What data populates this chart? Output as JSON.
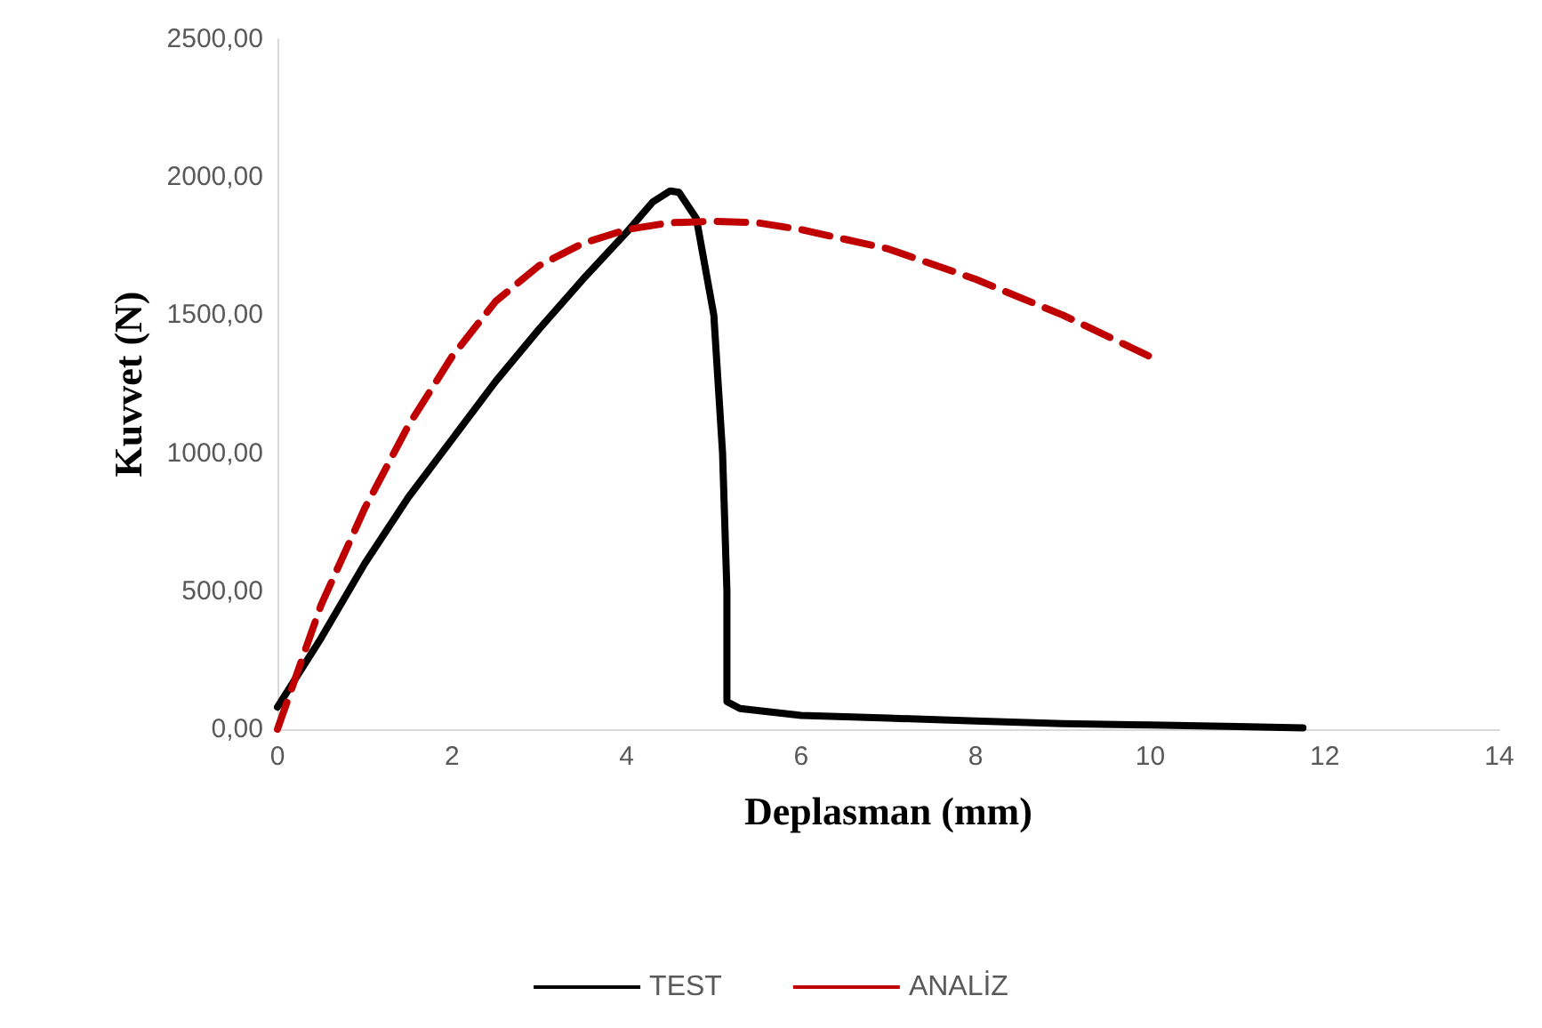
{
  "chart_data": {
    "type": "line",
    "xlabel": "Deplasman (mm)",
    "ylabel": "Kuvvet (N)",
    "xlim": [
      0,
      14
    ],
    "xticks": [
      0,
      2,
      4,
      6,
      8,
      10,
      12,
      14
    ],
    "ylim": [
      0,
      2500
    ],
    "yticks": [
      {
        "value": 0,
        "label": "0,00"
      },
      {
        "value": 500,
        "label": "500,00"
      },
      {
        "value": 1000,
        "label": "1000,00"
      },
      {
        "value": 1500,
        "label": "1500,00"
      },
      {
        "value": 2000,
        "label": "2000,00"
      },
      {
        "value": 2500,
        "label": "2500,00"
      }
    ],
    "grid": false,
    "legend": "bottom",
    "marker": "none",
    "series": [
      {
        "name": "TEST",
        "color": "#000000",
        "line_style": "solid",
        "x": [
          0,
          0.5,
          1,
          1.5,
          2,
          2.5,
          3,
          3.5,
          4,
          4.3,
          4.5,
          4.6,
          4.8,
          5.0,
          5.1,
          5.15,
          5.15,
          5.3,
          6,
          7,
          8,
          9,
          10,
          11,
          11.75
        ],
        "values": [
          80,
          330,
          600,
          840,
          1050,
          1260,
          1450,
          1630,
          1800,
          1910,
          1950,
          1945,
          1850,
          1500,
          1000,
          500,
          100,
          75,
          50,
          40,
          30,
          20,
          15,
          10,
          5
        ]
      },
      {
        "name": "ANALİZ",
        "color": "#c00000",
        "line_style": "dashed",
        "x": [
          0,
          0.5,
          1,
          1.5,
          2,
          2.5,
          3,
          3.5,
          4,
          4.5,
          5,
          5.5,
          6,
          7,
          8,
          9,
          10
        ],
        "values": [
          0,
          450,
          800,
          1100,
          1350,
          1550,
          1680,
          1760,
          1810,
          1835,
          1840,
          1835,
          1810,
          1740,
          1630,
          1500,
          1350
        ]
      }
    ]
  }
}
